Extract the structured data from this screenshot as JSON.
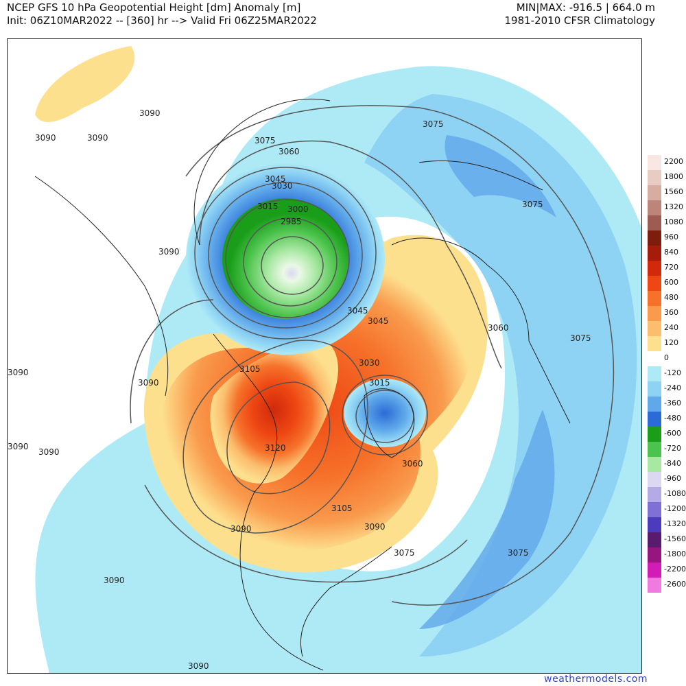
{
  "header": {
    "title_line1": "NCEP GFS 10 hPa Geopotential Height [dm] Anomaly [m]",
    "title_line2": "Init: 06Z10MAR2022 -- [360] hr --> Valid Fri 06Z25MAR2022",
    "minmax": "MIN|MAX: -916.5 | 664.0 m",
    "climatology": "1981-2010 CFSR Climatology"
  },
  "colorbar": [
    {
      "label": "2200",
      "color": "#f9e7e3"
    },
    {
      "label": "1800",
      "color": "#e8cbc2"
    },
    {
      "label": "1560",
      "color": "#d7ada2"
    },
    {
      "label": "1320",
      "color": "#bd857a"
    },
    {
      "label": "1080",
      "color": "#9d5c52"
    },
    {
      "label": "960",
      "color": "#7d1d0d"
    },
    {
      "label": "840",
      "color": "#a51c0b"
    },
    {
      "label": "720",
      "color": "#d0290c"
    },
    {
      "label": "600",
      "color": "#ee4713"
    },
    {
      "label": "480",
      "color": "#f6722b"
    },
    {
      "label": "360",
      "color": "#f99a4c"
    },
    {
      "label": "240",
      "color": "#fbbd6e"
    },
    {
      "label": "120",
      "color": "#fde08e"
    },
    {
      "label": "0",
      "color": "#ffffff"
    },
    {
      "label": "-120",
      "color": "#aeeaf6"
    },
    {
      "label": "-240",
      "color": "#8fd3f4"
    },
    {
      "label": "-360",
      "color": "#5fa8ea"
    },
    {
      "label": "-480",
      "color": "#2a6bd6"
    },
    {
      "label": "-600",
      "color": "#1a9e1a"
    },
    {
      "label": "-720",
      "color": "#4cc34c"
    },
    {
      "label": "-840",
      "color": "#a9e8a3"
    },
    {
      "label": "-960",
      "color": "#dcd8f2"
    },
    {
      "label": "-1080",
      "color": "#b3aae6"
    },
    {
      "label": "-1200",
      "color": "#7f70d6"
    },
    {
      "label": "-1320",
      "color": "#4d3bbd"
    },
    {
      "label": "-1560",
      "color": "#5a1b6e"
    },
    {
      "label": "-1800",
      "color": "#96157f"
    },
    {
      "label": "-2200",
      "color": "#d11cb6"
    },
    {
      "label": "-2600",
      "color": "#f07ae0"
    }
  ],
  "contour_labels": [
    "3090",
    "3090",
    "3090",
    "3075",
    "3060",
    "3045",
    "3030",
    "3015",
    "3000",
    "2985",
    "3090",
    "3075",
    "3075",
    "3045",
    "3045",
    "3060",
    "3075",
    "3090",
    "3105",
    "3030",
    "3015",
    "3120",
    "3060",
    "3105",
    "3090",
    "3090",
    "3090",
    "3090",
    "3090",
    "3075",
    "3075",
    "3090",
    "3090"
  ],
  "credit": "weathermodels.com"
}
